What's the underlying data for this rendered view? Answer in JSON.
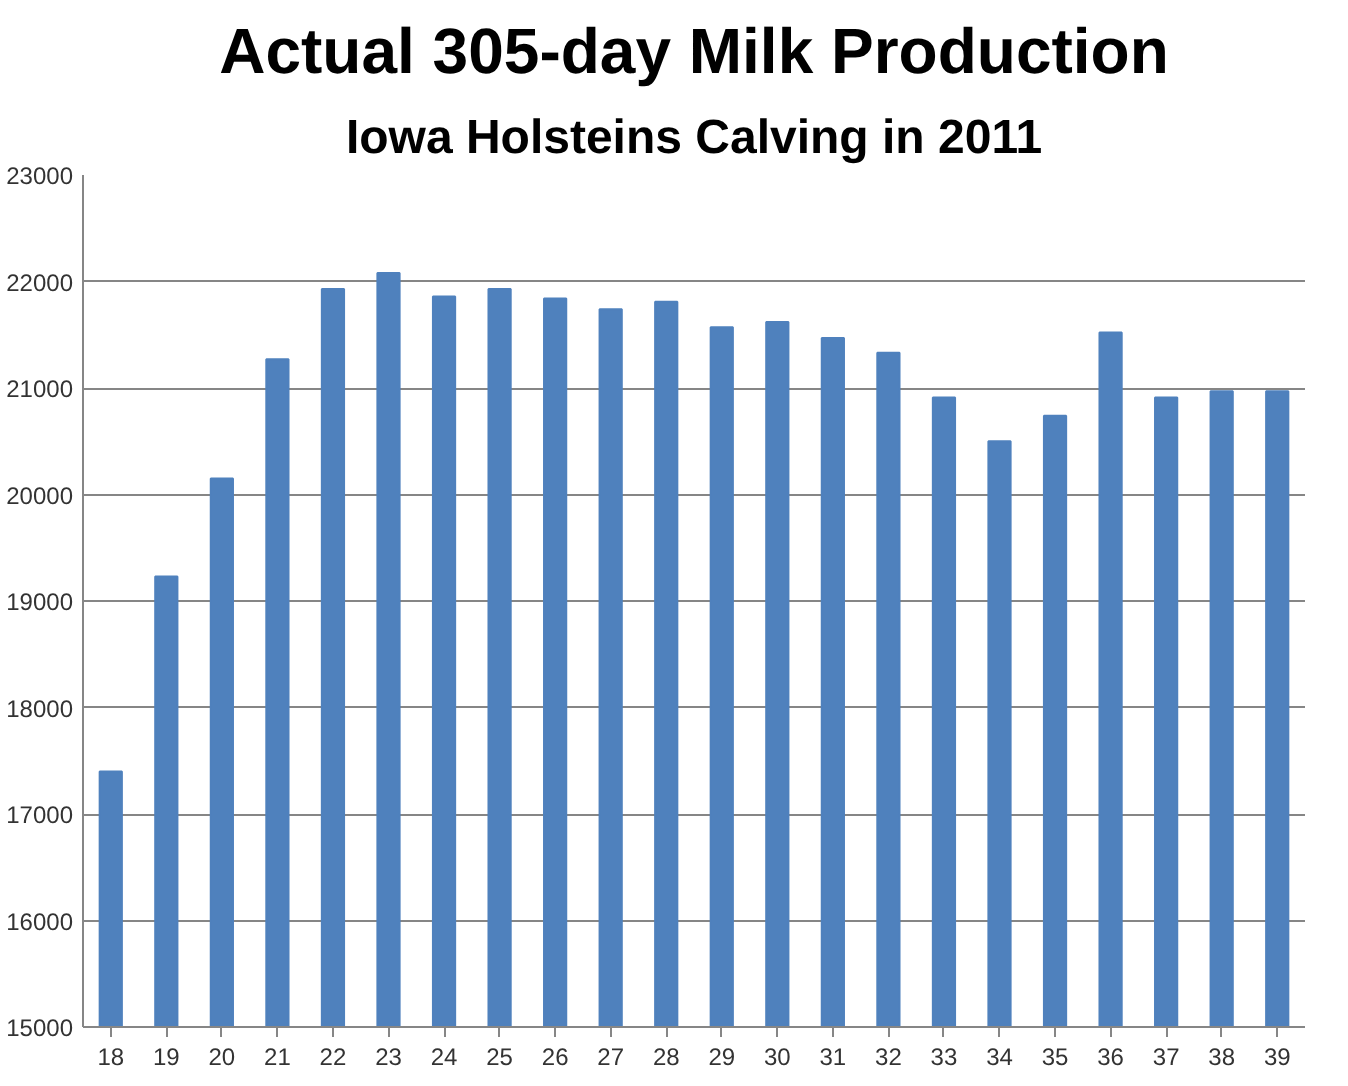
{
  "chart_data": {
    "type": "bar",
    "title": "Actual 305-day Milk Production",
    "subtitle": "Iowa Holsteins Calving in 2011",
    "categories": [
      "18",
      "19",
      "20",
      "21",
      "22",
      "23",
      "24",
      "25",
      "26",
      "27",
      "28",
      "29",
      "30",
      "31",
      "32",
      "33",
      "34",
      "35",
      "36",
      "37",
      "38",
      "39"
    ],
    "values": [
      17400,
      19230,
      20150,
      21270,
      21930,
      22080,
      21860,
      21930,
      21840,
      21740,
      21810,
      21570,
      21620,
      21470,
      21330,
      20910,
      20500,
      20740,
      21520,
      20910,
      20970,
      20970
    ],
    "color": "#4f81bd",
    "ylim": [
      15000,
      23000
    ],
    "yticks": [
      15000,
      16000,
      17000,
      18000,
      19000,
      20000,
      21000,
      22000,
      23000
    ],
    "grid": "y"
  }
}
